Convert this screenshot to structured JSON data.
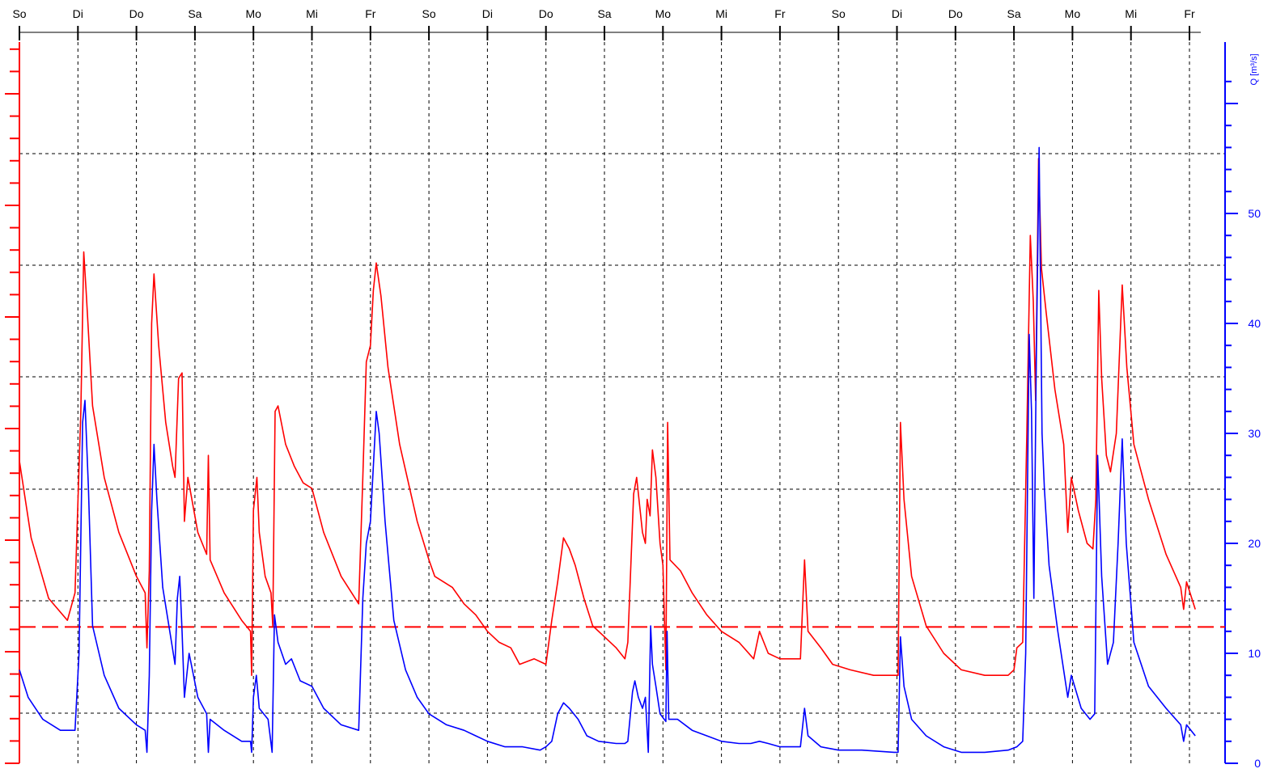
{
  "chart_data": {
    "type": "line",
    "title": "",
    "xlabel": "",
    "ylabel_left": "",
    "ylabel_right": "Q [m³/s]",
    "x_tick_labels": [
      "So",
      "Di",
      "Do",
      "Sa",
      "Mo",
      "Mi",
      "Fr",
      "So",
      "Di",
      "Do",
      "Sa",
      "Mo",
      "Mi",
      "Fr",
      "So",
      "Di",
      "Do",
      "Sa",
      "Mo",
      "Mi",
      "Fr"
    ],
    "x_range_days": [
      0,
      20
    ],
    "y_right_range": [
      0,
      62
    ],
    "y_right_ticks": [
      0,
      10,
      20,
      30,
      40,
      50
    ],
    "grid": true,
    "colors": {
      "red_series": "#ff0000",
      "blue_series": "#0000ff",
      "grid": "#000000",
      "threshold": "#ff0000",
      "left_axis": "#ff0000",
      "right_axis": "#0000ff",
      "top_axis": "#000000"
    },
    "threshold_right_units": 12.4,
    "series": [
      {
        "name": "",
        "color": "#ff0000",
        "axis": "right",
        "points": [
          [
            0.0,
            27.5
          ],
          [
            0.2,
            20.5
          ],
          [
            0.5,
            15.0
          ],
          [
            0.82,
            13.0
          ],
          [
            0.95,
            15.5
          ],
          [
            1.05,
            32.0
          ],
          [
            1.1,
            46.5
          ],
          [
            1.14,
            43.0
          ],
          [
            1.25,
            32.5
          ],
          [
            1.45,
            26.0
          ],
          [
            1.7,
            21.0
          ],
          [
            2.0,
            17.0
          ],
          [
            2.15,
            15.5
          ],
          [
            2.18,
            10.5
          ],
          [
            2.22,
            17.5
          ],
          [
            2.26,
            40.0
          ],
          [
            2.3,
            44.5
          ],
          [
            2.38,
            38.0
          ],
          [
            2.5,
            31.0
          ],
          [
            2.62,
            27.0
          ],
          [
            2.66,
            26.0
          ],
          [
            2.72,
            35.0
          ],
          [
            2.78,
            35.5
          ],
          [
            2.82,
            22.0
          ],
          [
            2.88,
            26.0
          ],
          [
            3.05,
            21.0
          ],
          [
            3.2,
            19.0
          ],
          [
            3.23,
            28.0
          ],
          [
            3.26,
            18.5
          ],
          [
            3.5,
            15.5
          ],
          [
            3.8,
            13.0
          ],
          [
            3.95,
            12.0
          ],
          [
            3.97,
            8.0
          ],
          [
            4.0,
            23.0
          ],
          [
            4.06,
            26.0
          ],
          [
            4.1,
            21.0
          ],
          [
            4.2,
            17.0
          ],
          [
            4.3,
            15.5
          ],
          [
            4.33,
            12.5
          ],
          [
            4.37,
            32.0
          ],
          [
            4.42,
            32.5
          ],
          [
            4.55,
            29.0
          ],
          [
            4.7,
            27.0
          ],
          [
            4.85,
            25.5
          ],
          [
            5.0,
            25.0
          ],
          [
            5.2,
            21.0
          ],
          [
            5.5,
            17.0
          ],
          [
            5.8,
            14.5
          ],
          [
            5.87,
            26.0
          ],
          [
            5.93,
            36.5
          ],
          [
            6.0,
            38.0
          ],
          [
            6.05,
            43.0
          ],
          [
            6.1,
            45.5
          ],
          [
            6.18,
            42.5
          ],
          [
            6.3,
            36.0
          ],
          [
            6.5,
            29.0
          ],
          [
            6.8,
            22.0
          ],
          [
            7.0,
            18.5
          ],
          [
            7.1,
            17.0
          ],
          [
            7.4,
            16.0
          ],
          [
            7.6,
            14.5
          ],
          [
            7.8,
            13.5
          ],
          [
            8.0,
            12.0
          ],
          [
            8.2,
            11.0
          ],
          [
            8.4,
            10.5
          ],
          [
            8.55,
            9.0
          ],
          [
            8.8,
            9.5
          ],
          [
            9.0,
            9.0
          ],
          [
            9.1,
            13.0
          ],
          [
            9.2,
            16.5
          ],
          [
            9.3,
            20.5
          ],
          [
            9.4,
            19.5
          ],
          [
            9.5,
            18.0
          ],
          [
            9.65,
            15.0
          ],
          [
            9.8,
            12.5
          ],
          [
            10.0,
            11.5
          ],
          [
            10.2,
            10.5
          ],
          [
            10.35,
            9.5
          ],
          [
            10.4,
            11.0
          ],
          [
            10.5,
            24.5
          ],
          [
            10.55,
            26.0
          ],
          [
            10.6,
            23.5
          ],
          [
            10.65,
            21.0
          ],
          [
            10.7,
            20.0
          ],
          [
            10.73,
            24.0
          ],
          [
            10.78,
            22.5
          ],
          [
            10.82,
            28.5
          ],
          [
            10.88,
            26.0
          ],
          [
            10.95,
            20.0
          ],
          [
            11.0,
            18.0
          ],
          [
            11.05,
            8.5
          ],
          [
            11.08,
            31.0
          ],
          [
            11.12,
            18.5
          ],
          [
            11.3,
            17.5
          ],
          [
            11.5,
            15.5
          ],
          [
            11.75,
            13.5
          ],
          [
            12.0,
            12.0
          ],
          [
            12.3,
            11.0
          ],
          [
            12.55,
            9.5
          ],
          [
            12.65,
            12.0
          ],
          [
            12.8,
            10.0
          ],
          [
            13.0,
            9.5
          ],
          [
            13.35,
            9.5
          ],
          [
            13.42,
            18.5
          ],
          [
            13.48,
            12.0
          ],
          [
            13.7,
            10.5
          ],
          [
            13.9,
            9.0
          ],
          [
            14.2,
            8.5
          ],
          [
            14.6,
            8.0
          ],
          [
            14.95,
            8.0
          ],
          [
            15.02,
            8.0
          ],
          [
            15.06,
            31.0
          ],
          [
            15.12,
            24.0
          ],
          [
            15.25,
            17.0
          ],
          [
            15.5,
            12.5
          ],
          [
            15.8,
            10.0
          ],
          [
            16.1,
            8.5
          ],
          [
            16.5,
            8.0
          ],
          [
            16.9,
            8.0
          ],
          [
            17.0,
            8.5
          ],
          [
            17.05,
            10.5
          ],
          [
            17.15,
            11.0
          ],
          [
            17.22,
            30.0
          ],
          [
            17.28,
            48.0
          ],
          [
            17.33,
            42.0
          ],
          [
            17.37,
            33.0
          ],
          [
            17.42,
            55.0
          ],
          [
            17.47,
            45.0
          ],
          [
            17.55,
            41.0
          ],
          [
            17.7,
            34.0
          ],
          [
            17.85,
            29.0
          ],
          [
            17.92,
            21.0
          ],
          [
            17.98,
            26.0
          ],
          [
            18.1,
            23.0
          ],
          [
            18.25,
            20.0
          ],
          [
            18.35,
            19.5
          ],
          [
            18.4,
            24.0
          ],
          [
            18.45,
            43.0
          ],
          [
            18.5,
            35.0
          ],
          [
            18.58,
            28.0
          ],
          [
            18.65,
            26.5
          ],
          [
            18.75,
            30.0
          ],
          [
            18.85,
            43.5
          ],
          [
            18.93,
            36.0
          ],
          [
            19.05,
            29.0
          ],
          [
            19.3,
            24.0
          ],
          [
            19.6,
            19.0
          ],
          [
            19.85,
            16.0
          ],
          [
            19.9,
            14.0
          ],
          [
            19.95,
            16.5
          ],
          [
            20.1,
            14.0
          ]
        ]
      },
      {
        "name": "",
        "color": "#0000ff",
        "axis": "right",
        "points": [
          [
            0.0,
            8.5
          ],
          [
            0.15,
            6.0
          ],
          [
            0.4,
            4.0
          ],
          [
            0.7,
            3.0
          ],
          [
            0.95,
            3.0
          ],
          [
            1.02,
            10.0
          ],
          [
            1.08,
            31.0
          ],
          [
            1.12,
            33.0
          ],
          [
            1.18,
            25.0
          ],
          [
            1.25,
            12.5
          ],
          [
            1.45,
            8.0
          ],
          [
            1.7,
            5.0
          ],
          [
            2.0,
            3.5
          ],
          [
            2.15,
            3.0
          ],
          [
            2.18,
            1.0
          ],
          [
            2.22,
            8.0
          ],
          [
            2.26,
            23.0
          ],
          [
            2.3,
            29.0
          ],
          [
            2.35,
            24.0
          ],
          [
            2.45,
            16.0
          ],
          [
            2.6,
            11.0
          ],
          [
            2.66,
            9.0
          ],
          [
            2.7,
            15.0
          ],
          [
            2.74,
            17.0
          ],
          [
            2.78,
            12.0
          ],
          [
            2.82,
            6.0
          ],
          [
            2.9,
            10.0
          ],
          [
            3.05,
            6.0
          ],
          [
            3.2,
            4.5
          ],
          [
            3.23,
            1.0
          ],
          [
            3.26,
            4.0
          ],
          [
            3.5,
            3.0
          ],
          [
            3.8,
            2.0
          ],
          [
            3.95,
            2.0
          ],
          [
            3.97,
            1.0
          ],
          [
            4.0,
            6.0
          ],
          [
            4.05,
            8.0
          ],
          [
            4.1,
            5.0
          ],
          [
            4.25,
            4.0
          ],
          [
            4.32,
            1.0
          ],
          [
            4.36,
            13.5
          ],
          [
            4.42,
            11.0
          ],
          [
            4.55,
            9.0
          ],
          [
            4.65,
            9.5
          ],
          [
            4.8,
            7.5
          ],
          [
            5.0,
            7.0
          ],
          [
            5.2,
            5.0
          ],
          [
            5.5,
            3.5
          ],
          [
            5.8,
            3.0
          ],
          [
            5.87,
            15.0
          ],
          [
            5.93,
            20.0
          ],
          [
            6.0,
            22.0
          ],
          [
            6.05,
            27.0
          ],
          [
            6.1,
            32.0
          ],
          [
            6.15,
            30.0
          ],
          [
            6.25,
            22.0
          ],
          [
            6.4,
            13.0
          ],
          [
            6.6,
            8.5
          ],
          [
            6.8,
            6.0
          ],
          [
            7.0,
            4.5
          ],
          [
            7.3,
            3.5
          ],
          [
            7.6,
            3.0
          ],
          [
            7.8,
            2.5
          ],
          [
            8.0,
            2.0
          ],
          [
            8.3,
            1.5
          ],
          [
            8.6,
            1.5
          ],
          [
            8.9,
            1.2
          ],
          [
            9.0,
            1.5
          ],
          [
            9.1,
            2.0
          ],
          [
            9.2,
            4.5
          ],
          [
            9.3,
            5.5
          ],
          [
            9.4,
            5.0
          ],
          [
            9.55,
            4.0
          ],
          [
            9.7,
            2.5
          ],
          [
            9.9,
            2.0
          ],
          [
            10.2,
            1.8
          ],
          [
            10.35,
            1.8
          ],
          [
            10.4,
            2.0
          ],
          [
            10.48,
            6.5
          ],
          [
            10.52,
            7.5
          ],
          [
            10.58,
            6.0
          ],
          [
            10.65,
            5.0
          ],
          [
            10.7,
            6.0
          ],
          [
            10.75,
            1.0
          ],
          [
            10.79,
            12.5
          ],
          [
            10.82,
            9.0
          ],
          [
            10.88,
            7.0
          ],
          [
            10.95,
            4.5
          ],
          [
            11.05,
            3.8
          ],
          [
            11.07,
            12.0
          ],
          [
            11.1,
            4.0
          ],
          [
            11.25,
            4.0
          ],
          [
            11.5,
            3.0
          ],
          [
            11.75,
            2.5
          ],
          [
            12.0,
            2.0
          ],
          [
            12.3,
            1.8
          ],
          [
            12.5,
            1.8
          ],
          [
            12.65,
            2.0
          ],
          [
            12.8,
            1.8
          ],
          [
            13.0,
            1.5
          ],
          [
            13.35,
            1.5
          ],
          [
            13.42,
            5.0
          ],
          [
            13.48,
            2.5
          ],
          [
            13.7,
            1.5
          ],
          [
            14.0,
            1.2
          ],
          [
            14.4,
            1.2
          ],
          [
            14.95,
            1.0
          ],
          [
            15.02,
            1.0
          ],
          [
            15.06,
            11.5
          ],
          [
            15.12,
            7.0
          ],
          [
            15.25,
            4.0
          ],
          [
            15.5,
            2.5
          ],
          [
            15.8,
            1.5
          ],
          [
            16.1,
            1.0
          ],
          [
            16.5,
            1.0
          ],
          [
            16.9,
            1.2
          ],
          [
            17.05,
            1.5
          ],
          [
            17.15,
            2.0
          ],
          [
            17.2,
            10.0
          ],
          [
            17.26,
            39.0
          ],
          [
            17.3,
            32.0
          ],
          [
            17.34,
            15.0
          ],
          [
            17.38,
            36.0
          ],
          [
            17.43,
            56.0
          ],
          [
            17.48,
            30.0
          ],
          [
            17.52,
            25.0
          ],
          [
            17.6,
            18.0
          ],
          [
            17.75,
            12.0
          ],
          [
            17.92,
            6.0
          ],
          [
            17.98,
            8.0
          ],
          [
            18.15,
            5.0
          ],
          [
            18.3,
            4.0
          ],
          [
            18.38,
            4.5
          ],
          [
            18.43,
            28.0
          ],
          [
            18.5,
            17.0
          ],
          [
            18.6,
            9.0
          ],
          [
            18.7,
            11.0
          ],
          [
            18.78,
            20.0
          ],
          [
            18.85,
            29.5
          ],
          [
            18.92,
            20.0
          ],
          [
            19.05,
            11.0
          ],
          [
            19.3,
            7.0
          ],
          [
            19.6,
            5.0
          ],
          [
            19.85,
            3.5
          ],
          [
            19.9,
            2.0
          ],
          [
            19.95,
            3.5
          ],
          [
            20.1,
            2.5
          ]
        ]
      }
    ]
  }
}
